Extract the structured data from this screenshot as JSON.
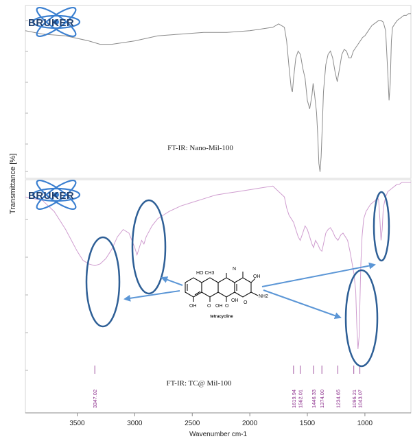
{
  "logo_text": "BRUKER",
  "ylabel": "Transmittance [%]",
  "xlabel": "Wavenumber cm-1",
  "top_panel_label": "FT-IR: Nano-Mil-100",
  "bottom_panel_label": "FT-IR: TC@ Mil-100",
  "molecule_name": "tetracycline",
  "molecule_atoms": {
    "ho_ch3": "HO CH3",
    "n_me2": "N",
    "oh_right": "OH",
    "oh_bottom_left": "OH",
    "oh_bottom_mid": "OH",
    "oh_center": "OH",
    "o1": "O",
    "o2": "O",
    "amide": "NH2",
    "amide_o": "O"
  },
  "colors": {
    "top_spectrum": "#8a8a8a",
    "bottom_spectrum": "#cf9ccf",
    "peak_label": "#8a2a8a",
    "annotation": "#2e5f96",
    "arrow": "#5b96d6",
    "logo_text": "#1f3f6e",
    "logo_orbit": "#3a7fd0"
  },
  "chart_data": {
    "type": "line",
    "xlabel": "Wavenumber cm-1",
    "ylabel": "Transmittance [%]",
    "xlim": [
      3950,
      600
    ],
    "x_reversed": true,
    "xticks": [
      3500,
      3000,
      2500,
      2000,
      1500,
      1000
    ],
    "series": [
      {
        "panel": "top",
        "x": [
          3950,
          3800,
          3600,
          3400,
          3300,
          3200,
          3000,
          2800,
          2600,
          2400,
          2200,
          2000,
          1800,
          1750,
          1700,
          1680,
          1660,
          1640,
          1630,
          1620,
          1600,
          1580,
          1560,
          1540,
          1520,
          1500,
          1480,
          1460,
          1450,
          1440,
          1420,
          1410,
          1400,
          1390,
          1380,
          1370,
          1360,
          1340,
          1320,
          1300,
          1280,
          1260,
          1240,
          1220,
          1200,
          1180,
          1160,
          1140,
          1120,
          1100,
          1080,
          1060,
          1040,
          1020,
          1000,
          980,
          960,
          940,
          920,
          900,
          880,
          860,
          840,
          820,
          800,
          790,
          780,
          770,
          760,
          740,
          720,
          700,
          680,
          660,
          640,
          620,
          600
        ],
        "values": [
          86,
          84,
          83,
          80,
          78,
          78,
          80,
          83,
          84,
          85,
          85,
          86,
          88,
          90,
          88,
          80,
          65,
          52,
          50,
          58,
          70,
          74,
          72,
          64,
          58,
          45,
          40,
          48,
          55,
          50,
          38,
          25,
          8,
          3,
          12,
          30,
          50,
          66,
          72,
          74,
          70,
          62,
          56,
          64,
          72,
          75,
          74,
          70,
          70,
          74,
          76,
          78,
          80,
          82,
          83,
          85,
          87,
          89,
          90,
          91,
          92,
          92,
          91,
          86,
          60,
          45,
          55,
          80,
          88,
          90,
          92,
          93,
          94,
          95,
          95,
          96,
          96
        ]
      },
      {
        "panel": "bottom",
        "x": [
          3950,
          3800,
          3700,
          3600,
          3500,
          3450,
          3400,
          3347,
          3300,
          3250,
          3200,
          3150,
          3100,
          3050,
          3000,
          2980,
          2960,
          2940,
          2920,
          2900,
          2850,
          2800,
          2750,
          2700,
          2600,
          2500,
          2400,
          2300,
          2200,
          2100,
          2000,
          1900,
          1800,
          1750,
          1700,
          1680,
          1660,
          1640,
          1620,
          1600,
          1580,
          1562,
          1540,
          1520,
          1500,
          1480,
          1460,
          1446,
          1430,
          1410,
          1390,
          1374,
          1360,
          1340,
          1320,
          1300,
          1280,
          1260,
          1234,
          1210,
          1190,
          1170,
          1150,
          1130,
          1110,
          1096,
          1080,
          1070,
          1060,
          1050,
          1043,
          1035,
          1025,
          1010,
          990,
          970,
          950,
          930,
          910,
          890,
          880,
          870,
          860,
          850,
          840,
          820,
          800,
          780,
          760,
          740,
          720,
          700,
          680,
          660,
          640,
          620,
          600
        ],
        "values": [
          92,
          90,
          84,
          74,
          62,
          57,
          55,
          54,
          55,
          58,
          63,
          70,
          74,
          72,
          64,
          60,
          64,
          68,
          66,
          70,
          76,
          80,
          82,
          84,
          87,
          89,
          91,
          93,
          94,
          95,
          96,
          97,
          98,
          95,
          92,
          86,
          82,
          80,
          78,
          74,
          70,
          68,
          72,
          76,
          74,
          70,
          66,
          64,
          68,
          66,
          63,
          62,
          66,
          72,
          74,
          75,
          73,
          70,
          68,
          71,
          72,
          70,
          68,
          62,
          55,
          50,
          40,
          20,
          8,
          15,
          35,
          55,
          70,
          80,
          84,
          86,
          88,
          89,
          90,
          92,
          90,
          80,
          68,
          74,
          86,
          92,
          95,
          96,
          97,
          98,
          99,
          99,
          100,
          100,
          100,
          100,
          100
        ]
      }
    ],
    "peak_labels": [
      {
        "x": 3347.02,
        "text": "3347.02"
      },
      {
        "x": 1619.94,
        "text": "1619.94"
      },
      {
        "x": 1562.01,
        "text": "1562.01"
      },
      {
        "x": 1446.33,
        "text": "1446.33"
      },
      {
        "x": 1374.0,
        "text": "1374.00"
      },
      {
        "x": 1234.65,
        "text": "1234.65"
      },
      {
        "x": 1096.21,
        "text": "1096.21"
      },
      {
        "x": 1043.07,
        "text": "1043.07"
      }
    ]
  }
}
